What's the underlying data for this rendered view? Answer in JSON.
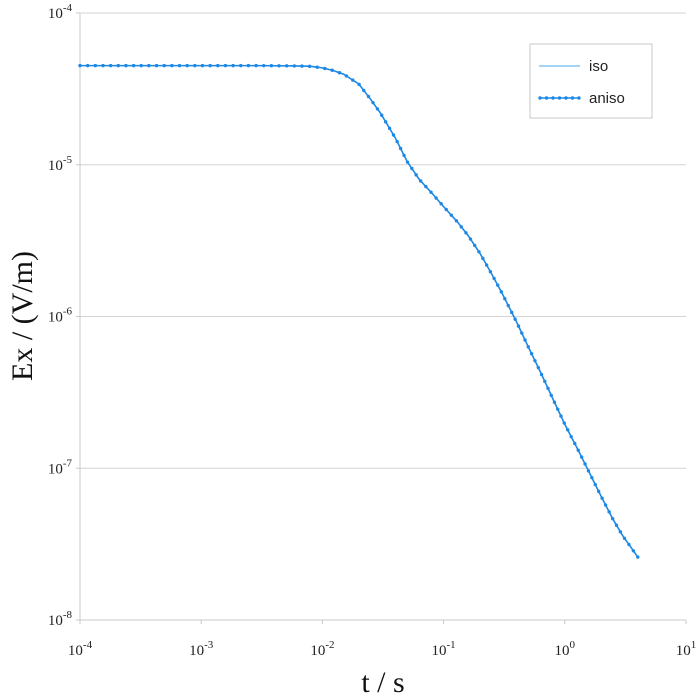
{
  "chart_data": {
    "type": "line",
    "xscale": "log",
    "yscale": "log",
    "xlim": [
      0.0001,
      10
    ],
    "ylim": [
      1e-08,
      0.0001
    ],
    "xlabel": "t / s",
    "ylabel": "Ex / (V/m)",
    "grid": "horizontal",
    "legend_position": "top-right",
    "x_ticks": [
      {
        "value": 0.0001,
        "base": "10",
        "exp": "-4"
      },
      {
        "value": 0.001,
        "base": "10",
        "exp": "-3"
      },
      {
        "value": 0.01,
        "base": "10",
        "exp": "-2"
      },
      {
        "value": 0.1,
        "base": "10",
        "exp": "-1"
      },
      {
        "value": 1,
        "base": "10",
        "exp": "0"
      },
      {
        "value": 10,
        "base": "10",
        "exp": "1"
      }
    ],
    "y_ticks": [
      {
        "value": 1e-08,
        "base": "10",
        "exp": "-8"
      },
      {
        "value": 1e-07,
        "base": "10",
        "exp": "-7"
      },
      {
        "value": 1e-06,
        "base": "10",
        "exp": "-6"
      },
      {
        "value": 1e-05,
        "base": "10",
        "exp": "-5"
      },
      {
        "value": 0.0001,
        "base": "10",
        "exp": "-4"
      }
    ],
    "series": [
      {
        "name": "iso",
        "color": "#4aa8ea",
        "marker": "none",
        "x": [
          0.0001,
          0.001,
          0.003,
          0.006,
          0.008,
          0.01,
          0.012,
          0.015,
          0.02,
          0.025,
          0.03,
          0.04,
          0.05,
          0.063,
          0.08,
          0.1,
          0.13,
          0.16,
          0.2,
          0.25,
          0.3,
          0.4,
          0.5,
          0.63,
          0.8,
          1,
          1.3,
          1.6,
          2,
          2.5,
          3,
          4
        ],
        "y": [
          4.5e-05,
          4.5e-05,
          4.5e-05,
          4.48e-05,
          4.45e-05,
          4.35e-05,
          4.2e-05,
          3.95e-05,
          3.4e-05,
          2.7e-05,
          2.2e-05,
          1.5e-05,
          1.05e-05,
          8e-06,
          6.5e-06,
          5.3e-06,
          4.2e-06,
          3.4e-06,
          2.6e-06,
          1.9e-06,
          1.45e-06,
          9.2e-07,
          6.3e-07,
          4.3e-07,
          2.85e-07,
          1.95e-07,
          1.3e-07,
          9.3e-08,
          6.5e-08,
          4.6e-08,
          3.6e-08,
          2.6e-08
        ]
      },
      {
        "name": "aniso",
        "color": "#1e88e5",
        "marker": "circle",
        "x": [
          0.0001,
          0.001,
          0.003,
          0.006,
          0.008,
          0.01,
          0.012,
          0.015,
          0.02,
          0.025,
          0.03,
          0.04,
          0.05,
          0.063,
          0.08,
          0.1,
          0.13,
          0.16,
          0.2,
          0.25,
          0.3,
          0.4,
          0.5,
          0.63,
          0.8,
          1,
          1.3,
          1.6,
          2,
          2.5,
          3,
          4
        ],
        "y": [
          4.5e-05,
          4.5e-05,
          4.5e-05,
          4.48e-05,
          4.45e-05,
          4.35e-05,
          4.2e-05,
          3.95e-05,
          3.4e-05,
          2.7e-05,
          2.2e-05,
          1.5e-05,
          1.05e-05,
          8e-06,
          6.5e-06,
          5.3e-06,
          4.2e-06,
          3.4e-06,
          2.6e-06,
          1.9e-06,
          1.45e-06,
          9.2e-07,
          6.3e-07,
          4.3e-07,
          2.85e-07,
          1.95e-07,
          1.3e-07,
          9.3e-08,
          6.5e-08,
          4.6e-08,
          3.6e-08,
          2.6e-08
        ]
      }
    ]
  }
}
